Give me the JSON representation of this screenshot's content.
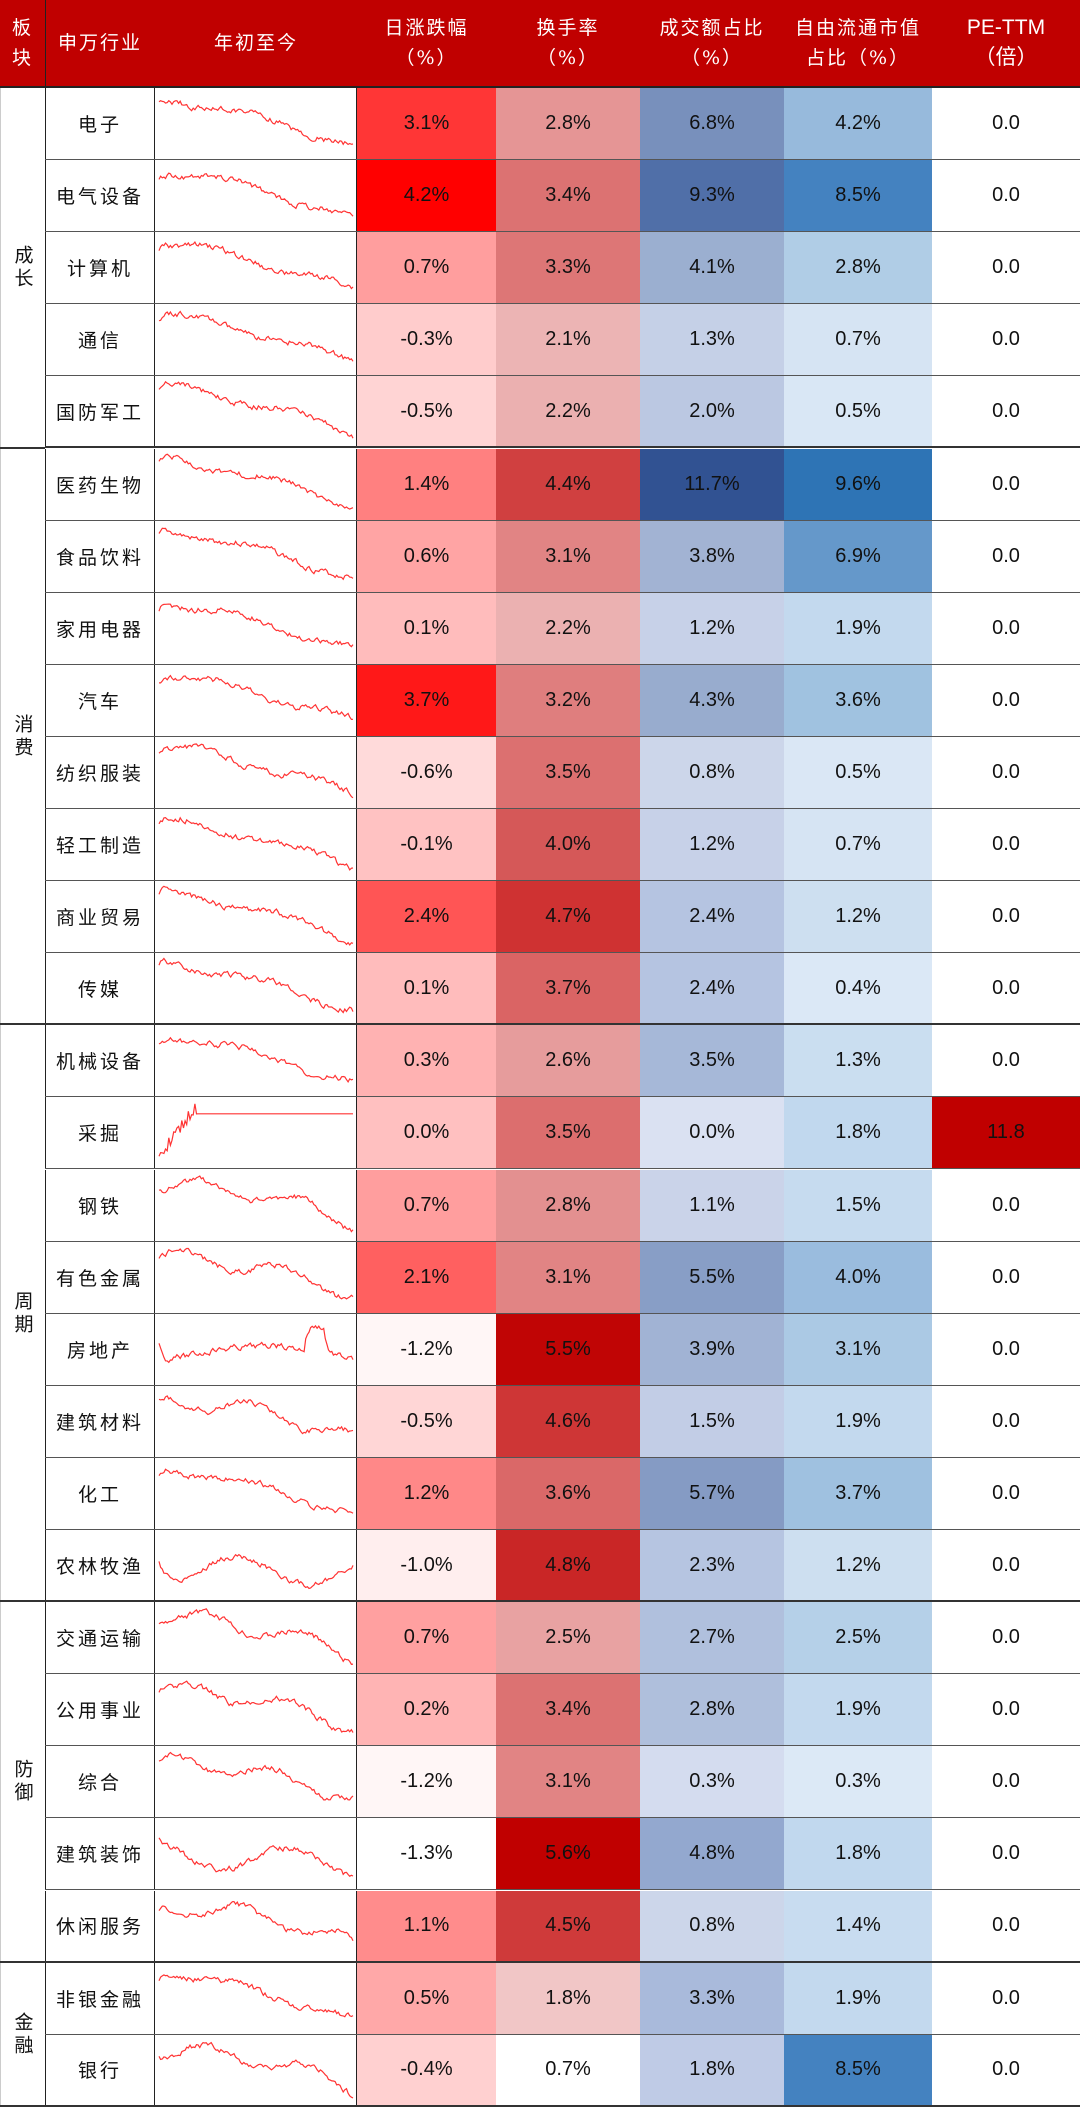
{
  "header": {
    "sector": "板\n块",
    "industry": "申万行业",
    "ytd": "年初至今",
    "daily_change": "日涨跌幅\n（%）",
    "turnover": "换手率\n（%）",
    "amount_share": "成交额占比\n（%）",
    "free_cap_share": "自由流通市值\n占比（%）",
    "pe_ttm": "PE-TTM\n（倍）"
  },
  "colors": {
    "header_bg": "#c00000",
    "sparkline": "#ff3333",
    "pe_highlight": "#c00000"
  },
  "groups": [
    {
      "label": "成长",
      "start": 0,
      "count": 5
    },
    {
      "label": "消费",
      "start": 5,
      "count": 8
    },
    {
      "label": "周期",
      "start": 13,
      "count": 8
    },
    {
      "label": "防御",
      "start": 21,
      "count": 5
    },
    {
      "label": "金融",
      "start": 26,
      "count": 2
    }
  ],
  "rows": [
    {
      "name": "电子",
      "chg": "3.1%",
      "turn": "2.8%",
      "amt": "6.8%",
      "cap": "4.2%",
      "pe": "0.0",
      "chg_bg": "#ff3636",
      "turn_bg": "#e59595",
      "amt_bg": "#7890bc",
      "cap_bg": "#97badc",
      "pe_bg": "#ffffff"
    },
    {
      "name": "电气设备",
      "chg": "4.2%",
      "turn": "3.4%",
      "amt": "9.3%",
      "cap": "8.5%",
      "pe": "0.0",
      "chg_bg": "#ff0000",
      "turn_bg": "#dc7272",
      "amt_bg": "#506fa8",
      "cap_bg": "#4482c0",
      "pe_bg": "#ffffff"
    },
    {
      "name": "计算机",
      "chg": "0.7%",
      "turn": "3.3%",
      "amt": "4.1%",
      "cap": "2.8%",
      "pe": "0.0",
      "chg_bg": "#ff9e9e",
      "turn_bg": "#dd7676",
      "amt_bg": "#9bafd0",
      "cap_bg": "#b0cde6",
      "pe_bg": "#ffffff"
    },
    {
      "name": "通信",
      "chg": "-0.3%",
      "turn": "2.1%",
      "amt": "1.3%",
      "cap": "0.7%",
      "pe": "0.0",
      "chg_bg": "#ffcccc",
      "turn_bg": "#ecb4b4",
      "amt_bg": "#c5d0e7",
      "cap_bg": "#d6e4f3",
      "pe_bg": "#ffffff"
    },
    {
      "name": "国防军工",
      "chg": "-0.5%",
      "turn": "2.2%",
      "amt": "2.0%",
      "cap": "0.5%",
      "pe": "0.0",
      "chg_bg": "#ffd4d4",
      "turn_bg": "#ebb0b0",
      "amt_bg": "#bbc8e2",
      "cap_bg": "#d9e7f5",
      "pe_bg": "#ffffff"
    },
    {
      "name": "医药生物",
      "chg": "1.4%",
      "turn": "4.4%",
      "amt": "11.7%",
      "cap": "9.6%",
      "pe": "0.0",
      "chg_bg": "#ff8080",
      "turn_bg": "#d04040",
      "amt_bg": "#315292",
      "cap_bg": "#2e74b5",
      "pe_bg": "#ffffff"
    },
    {
      "name": "食品饮料",
      "chg": "0.6%",
      "turn": "3.1%",
      "amt": "3.8%",
      "cap": "6.9%",
      "pe": "0.0",
      "chg_bg": "#ffa4a4",
      "turn_bg": "#e18484",
      "amt_bg": "#a2b3d3",
      "cap_bg": "#6598ca",
      "pe_bg": "#ffffff"
    },
    {
      "name": "家用电器",
      "chg": "0.1%",
      "turn": "2.2%",
      "amt": "1.2%",
      "cap": "1.9%",
      "pe": "0.0",
      "chg_bg": "#ffbcbc",
      "turn_bg": "#ebb1b1",
      "amt_bg": "#c7d1e8",
      "cap_bg": "#c3d9ee",
      "pe_bg": "#ffffff"
    },
    {
      "name": "汽车",
      "chg": "3.7%",
      "turn": "3.2%",
      "amt": "4.3%",
      "cap": "3.6%",
      "pe": "0.0",
      "chg_bg": "#ff1818",
      "turn_bg": "#df7e7e",
      "amt_bg": "#98acce",
      "cap_bg": "#a0c2e0",
      "pe_bg": "#ffffff"
    },
    {
      "name": "纺织服装",
      "chg": "-0.6%",
      "turn": "3.5%",
      "amt": "0.8%",
      "cap": "0.5%",
      "pe": "0.0",
      "chg_bg": "#ffdada",
      "turn_bg": "#dc7070",
      "amt_bg": "#ccd6ea",
      "cap_bg": "#dae7f5",
      "pe_bg": "#ffffff"
    },
    {
      "name": "轻工制造",
      "chg": "-0.1%",
      "turn": "4.0%",
      "amt": "1.2%",
      "cap": "0.7%",
      "pe": "0.0",
      "chg_bg": "#ffc2c2",
      "turn_bg": "#d55858",
      "amt_bg": "#c7d1e8",
      "cap_bg": "#d6e4f3",
      "pe_bg": "#ffffff"
    },
    {
      "name": "商业贸易",
      "chg": "2.4%",
      "turn": "4.7%",
      "amt": "2.4%",
      "cap": "1.2%",
      "pe": "0.0",
      "chg_bg": "#ff5555",
      "turn_bg": "#cf3232",
      "amt_bg": "#b5c4e1",
      "cap_bg": "#cddff0",
      "pe_bg": "#ffffff"
    },
    {
      "name": "传媒",
      "chg": "0.1%",
      "turn": "3.7%",
      "amt": "2.4%",
      "cap": "0.4%",
      "pe": "0.0",
      "chg_bg": "#ffbcbc",
      "turn_bg": "#da6464",
      "amt_bg": "#b5c4e1",
      "cap_bg": "#dbe8f6",
      "pe_bg": "#ffffff"
    },
    {
      "name": "机械设备",
      "chg": "0.3%",
      "turn": "2.6%",
      "amt": "3.5%",
      "cap": "1.3%",
      "pe": "0.0",
      "chg_bg": "#ffb2b2",
      "turn_bg": "#e69c9c",
      "amt_bg": "#a6b8d8",
      "cap_bg": "#cadef0",
      "pe_bg": "#ffffff"
    },
    {
      "name": "采掘",
      "chg": "0.0%",
      "turn": "3.5%",
      "amt": "0.0%",
      "cap": "1.8%",
      "pe": "11.8",
      "chg_bg": "#ffc0c0",
      "turn_bg": "#dc6e6e",
      "amt_bg": "#dae1f2",
      "cap_bg": "#c1d8ee",
      "pe_bg": "#c00000"
    },
    {
      "name": "钢铁",
      "chg": "0.7%",
      "turn": "2.8%",
      "amt": "1.1%",
      "cap": "1.5%",
      "pe": "0.0",
      "chg_bg": "#ff9e9e",
      "turn_bg": "#e39090",
      "amt_bg": "#cad3e9",
      "cap_bg": "#c6dbef",
      "pe_bg": "#ffffff"
    },
    {
      "name": "有色金属",
      "chg": "2.1%",
      "turn": "3.1%",
      "amt": "5.5%",
      "cap": "4.0%",
      "pe": "0.0",
      "chg_bg": "#ff6060",
      "turn_bg": "#e18484",
      "amt_bg": "#889ec6",
      "cap_bg": "#9abcde",
      "pe_bg": "#ffffff"
    },
    {
      "name": "房地产",
      "chg": "-1.2%",
      "turn": "5.5%",
      "amt": "3.9%",
      "cap": "3.1%",
      "pe": "0.0",
      "chg_bg": "#fff6f6",
      "turn_bg": "#c00505",
      "amt_bg": "#a1b3d4",
      "cap_bg": "#abc9e4",
      "pe_bg": "#ffffff"
    },
    {
      "name": "建筑材料",
      "chg": "-0.5%",
      "turn": "4.6%",
      "amt": "1.5%",
      "cap": "1.9%",
      "pe": "0.0",
      "chg_bg": "#ffd6d6",
      "turn_bg": "#ce3636",
      "amt_bg": "#c2cde6",
      "cap_bg": "#c3d9ee",
      "pe_bg": "#ffffff"
    },
    {
      "name": "化工",
      "chg": "1.2%",
      "turn": "3.6%",
      "amt": "5.7%",
      "cap": "3.7%",
      "pe": "0.0",
      "chg_bg": "#ff8888",
      "turn_bg": "#da6868",
      "amt_bg": "#859bc4",
      "cap_bg": "#9fc1e0",
      "pe_bg": "#ffffff"
    },
    {
      "name": "农林牧渔",
      "chg": "-1.0%",
      "turn": "4.8%",
      "amt": "2.3%",
      "cap": "1.2%",
      "pe": "0.0",
      "chg_bg": "#ffeeee",
      "turn_bg": "#c92626",
      "amt_bg": "#b6c5e1",
      "cap_bg": "#cddff0",
      "pe_bg": "#ffffff"
    },
    {
      "name": "交通运输",
      "chg": "0.7%",
      "turn": "2.5%",
      "amt": "2.7%",
      "cap": "2.5%",
      "pe": "0.0",
      "chg_bg": "#ffa0a0",
      "turn_bg": "#e8a2a2",
      "amt_bg": "#b0c0dd",
      "cap_bg": "#b5d0e8",
      "pe_bg": "#ffffff"
    },
    {
      "name": "公用事业",
      "chg": "0.2%",
      "turn": "3.4%",
      "amt": "2.8%",
      "cap": "1.9%",
      "pe": "0.0",
      "chg_bg": "#ffb4b4",
      "turn_bg": "#dc7272",
      "amt_bg": "#afbfdc",
      "cap_bg": "#c3d9ee",
      "pe_bg": "#ffffff"
    },
    {
      "name": "综合",
      "chg": "-1.2%",
      "turn": "3.1%",
      "amt": "0.3%",
      "cap": "0.3%",
      "pe": "0.0",
      "chg_bg": "#fff6f6",
      "turn_bg": "#e18484",
      "amt_bg": "#d4dcef",
      "cap_bg": "#dce9f6",
      "pe_bg": "#ffffff"
    },
    {
      "name": "建筑装饰",
      "chg": "-1.3%",
      "turn": "5.6%",
      "amt": "4.8%",
      "cap": "1.8%",
      "pe": "0.0",
      "chg_bg": "#ffffff",
      "turn_bg": "#c00000",
      "amt_bg": "#93a8cf",
      "cap_bg": "#c1d8ee",
      "pe_bg": "#ffffff"
    },
    {
      "name": "休闲服务",
      "chg": "1.1%",
      "turn": "4.5%",
      "amt": "0.8%",
      "cap": "1.4%",
      "pe": "0.0",
      "chg_bg": "#ff8c8c",
      "turn_bg": "#cf3a3a",
      "amt_bg": "#ccd6ea",
      "cap_bg": "#c8dcf0",
      "pe_bg": "#ffffff"
    },
    {
      "name": "非银金融",
      "chg": "0.5%",
      "turn": "1.8%",
      "amt": "3.3%",
      "cap": "1.9%",
      "pe": "0.0",
      "chg_bg": "#ffa8a8",
      "turn_bg": "#f1c6c6",
      "amt_bg": "#a9badb",
      "cap_bg": "#c3d9ee",
      "pe_bg": "#ffffff"
    },
    {
      "name": "银行",
      "chg": "-0.4%",
      "turn": "0.7%",
      "amt": "1.8%",
      "cap": "8.5%",
      "pe": "0.0",
      "chg_bg": "#ffd0d0",
      "turn_bg": "#ffffff",
      "amt_bg": "#bfcbe6",
      "cap_bg": "#4482c0",
      "pe_bg": "#ffffff"
    }
  ],
  "chart_data": {
    "type": "table",
    "title": "",
    "columns": [
      "板块",
      "申万行业",
      "年初至今",
      "日涨跌幅（%）",
      "换手率（%）",
      "成交额占比（%）",
      "自由流通市值占比（%）",
      "PE-TTM（倍）"
    ],
    "groups": [
      "成长",
      "消费",
      "周期",
      "防御",
      "金融"
    ],
    "categories": [
      "电子",
      "电气设备",
      "计算机",
      "通信",
      "国防军工",
      "医药生物",
      "食品饮料",
      "家用电器",
      "汽车",
      "纺织服装",
      "轻工制造",
      "商业贸易",
      "传媒",
      "机械设备",
      "采掘",
      "钢铁",
      "有色金属",
      "房地产",
      "建筑材料",
      "化工",
      "农林牧渔",
      "交通运输",
      "公用事业",
      "综合",
      "建筑装饰",
      "休闲服务",
      "非银金融",
      "银行"
    ],
    "series": [
      {
        "name": "日涨跌幅（%）",
        "values": [
          3.1,
          4.2,
          0.7,
          -0.3,
          -0.5,
          1.4,
          0.6,
          0.1,
          3.7,
          -0.6,
          -0.1,
          2.4,
          0.1,
          0.3,
          0.0,
          0.7,
          2.1,
          -1.2,
          -0.5,
          1.2,
          -1.0,
          0.7,
          0.2,
          -1.2,
          -1.3,
          1.1,
          0.5,
          -0.4
        ]
      },
      {
        "name": "换手率（%）",
        "values": [
          2.8,
          3.4,
          3.3,
          2.1,
          2.2,
          4.4,
          3.1,
          2.2,
          3.2,
          3.5,
          4.0,
          4.7,
          3.7,
          2.6,
          3.5,
          2.8,
          3.1,
          5.5,
          4.6,
          3.6,
          4.8,
          2.5,
          3.4,
          3.1,
          5.6,
          4.5,
          1.8,
          0.7
        ]
      },
      {
        "name": "成交额占比（%）",
        "values": [
          6.8,
          9.3,
          4.1,
          1.3,
          2.0,
          11.7,
          3.8,
          1.2,
          4.3,
          0.8,
          1.2,
          2.4,
          2.4,
          3.5,
          0.0,
          1.1,
          5.5,
          3.9,
          1.5,
          5.7,
          2.3,
          2.7,
          2.8,
          0.3,
          4.8,
          0.8,
          3.3,
          1.8
        ]
      },
      {
        "name": "自由流通市值占比（%）",
        "values": [
          4.2,
          8.5,
          2.8,
          0.7,
          0.5,
          9.6,
          6.9,
          1.9,
          3.6,
          0.5,
          0.7,
          1.2,
          0.4,
          1.3,
          1.8,
          1.5,
          4.0,
          3.1,
          1.9,
          3.7,
          1.2,
          2.5,
          1.9,
          0.3,
          1.8,
          1.4,
          1.9,
          8.5
        ]
      },
      {
        "name": "PE-TTM（倍）",
        "values": [
          0.0,
          0.0,
          0.0,
          0.0,
          0.0,
          0.0,
          0.0,
          0.0,
          0.0,
          0.0,
          0.0,
          0.0,
          0.0,
          0.0,
          11.8,
          0.0,
          0.0,
          0.0,
          0.0,
          0.0,
          0.0,
          0.0,
          0.0,
          0.0,
          0.0,
          0.0,
          0.0,
          0.0
        ]
      }
    ],
    "sparklines": {
      "label": "年初至今",
      "shapes": [
        "decline",
        "decline",
        "decline",
        "decline",
        "decline",
        "decline",
        "decline",
        "decline",
        "decline",
        "decline",
        "decline",
        "decline",
        "decline",
        "decline",
        "spike-then-flat",
        "volatile-decline",
        "volatile-decline",
        "volatile-rise",
        "volatile-decline",
        "decline",
        "volatile",
        "volatile-decline",
        "volatile-decline",
        "volatile-decline",
        "volatile",
        "volatile-decline",
        "decline",
        "volatile-decline"
      ]
    }
  }
}
